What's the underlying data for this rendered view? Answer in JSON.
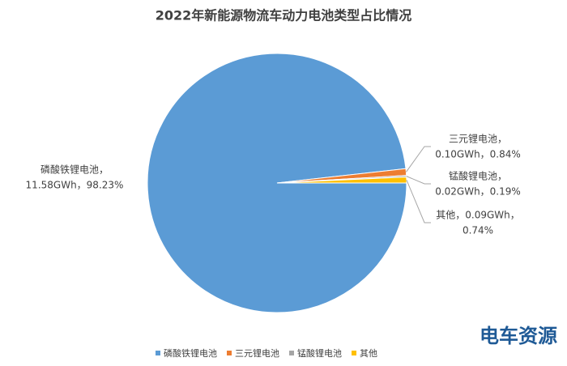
{
  "chart_data": {
    "type": "pie",
    "title": "2022年新能源物流车动力电池类型占比情况",
    "categories": [
      "磷酸铁锂电池",
      "三元锂电池",
      "锰酸锂电池",
      "其他"
    ],
    "values": [
      98.23,
      0.84,
      0.19,
      0.74
    ],
    "gwh": [
      11.58,
      0.1,
      0.02,
      0.09
    ],
    "value_labels": [
      [
        "磷酸铁锂电池，",
        "11.58GWh，98.23%"
      ],
      [
        "三元锂电池，",
        "0.10GWh，0.84%"
      ],
      [
        "锰酸锂电池，",
        "0.02GWh，0.19%"
      ],
      [
        "其他，0.09GWh，",
        "0.74%"
      ]
    ],
    "colors": [
      "#5b9bd5",
      "#ed7d31",
      "#a5a5a5",
      "#ffc000"
    ],
    "legend": "bottom"
  },
  "watermark": "电车资源"
}
